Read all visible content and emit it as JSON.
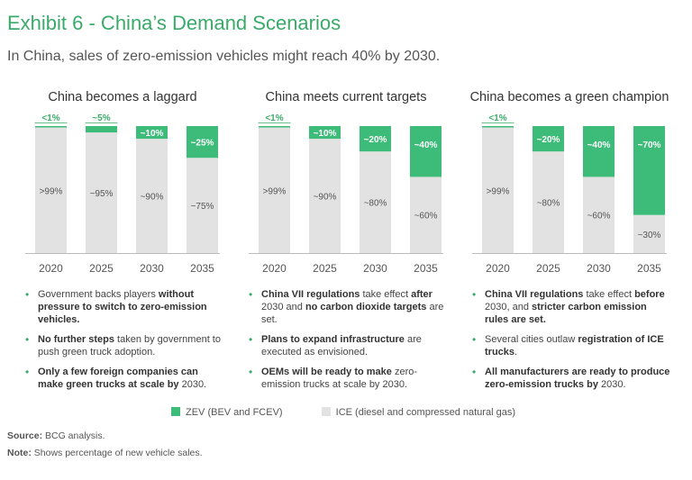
{
  "title": "Exhibit 6 - China’s Demand Scenarios",
  "subtitle": "In China, sales of zero-emission vehicles might reach 40% by 2030.",
  "colors": {
    "zev": "#3dbb78",
    "ice": "#e2e2e2",
    "accent": "#3aaa6a"
  },
  "chart_data": [
    {
      "type": "bar",
      "stacked": true,
      "title": "China becomes a laggard",
      "categories": [
        "2020",
        "2025",
        "2030",
        "2035"
      ],
      "series": [
        {
          "name": "ZEV (BEV and FCEV)",
          "values": [
            1,
            5,
            10,
            25
          ],
          "labels": [
            "<1%",
            "~5%",
            "~10%",
            "~25%"
          ]
        },
        {
          "name": "ICE (diesel and compressed natural gas)",
          "values": [
            99,
            95,
            90,
            75
          ],
          "labels": [
            ">99%",
            "~95%",
            "~90%",
            "~75%"
          ]
        }
      ],
      "ylim": [
        0,
        100
      ]
    },
    {
      "type": "bar",
      "stacked": true,
      "title": "China meets current targets",
      "categories": [
        "2020",
        "2025",
        "2030",
        "2035"
      ],
      "series": [
        {
          "name": "ZEV (BEV and FCEV)",
          "values": [
            1,
            10,
            20,
            40
          ],
          "labels": [
            "<1%",
            "~10%",
            "~20%",
            "~40%"
          ]
        },
        {
          "name": "ICE (diesel and compressed natural gas)",
          "values": [
            99,
            90,
            80,
            60
          ],
          "labels": [
            ">99%",
            "~90%",
            "~80%",
            "~60%"
          ]
        }
      ],
      "ylim": [
        0,
        100
      ]
    },
    {
      "type": "bar",
      "stacked": true,
      "title": "China becomes a green champion",
      "categories": [
        "2020",
        "2025",
        "2030",
        "2035"
      ],
      "series": [
        {
          "name": "ZEV (BEV and FCEV)",
          "values": [
            1,
            20,
            40,
            70
          ],
          "labels": [
            "<1%",
            "~20%",
            "~40%",
            "~70%"
          ]
        },
        {
          "name": "ICE (diesel and compressed natural gas)",
          "values": [
            99,
            80,
            60,
            30
          ],
          "labels": [
            ">99%",
            "~80%",
            "~60%",
            "~30%"
          ]
        }
      ],
      "ylim": [
        0,
        100
      ]
    }
  ],
  "bullets": [
    [
      [
        [
          "Government backs players ",
          false
        ],
        [
          "without pressure to switch to zero-emission vehicles.",
          true
        ]
      ],
      [
        [
          "No further steps",
          true
        ],
        [
          " taken by government to push green truck adoption.",
          false
        ]
      ],
      [
        [
          "Only a few foreign companies can make green trucks at scale by",
          true
        ],
        [
          " 2030.",
          false
        ]
      ]
    ],
    [
      [
        [
          "China VII regulations",
          true
        ],
        [
          " take effect ",
          false
        ],
        [
          "after",
          true
        ],
        [
          " 2030 and ",
          false
        ],
        [
          "no carbon dioxide targets",
          true
        ],
        [
          " are set.",
          false
        ]
      ],
      [
        [
          "Plans to expand infrastructure",
          true
        ],
        [
          " are executed as envisioned.",
          false
        ]
      ],
      [
        [
          "OEMs will be ready to make",
          true
        ],
        [
          " zero-emission trucks at scale by 2030.",
          false
        ]
      ]
    ],
    [
      [
        [
          "China VII regulations",
          true
        ],
        [
          " take effect ",
          false
        ],
        [
          "before",
          true
        ],
        [
          " 2030, and ",
          false
        ],
        [
          "stricter carbon emission rules are set.",
          true
        ]
      ],
      [
        [
          "Several cities outlaw ",
          false
        ],
        [
          "registration of ICE trucks",
          true
        ],
        [
          ".",
          false
        ]
      ],
      [
        [
          "All manufacturers are ready to produce zero-emission trucks by",
          true
        ],
        [
          " 2030.",
          false
        ]
      ]
    ]
  ],
  "legend": {
    "zev": "ZEV (BEV and FCEV)",
    "ice": "ICE (diesel and compressed natural gas)"
  },
  "source": {
    "label": "Source:",
    "text": " BCG analysis."
  },
  "note": {
    "label": "Note:",
    "text": " Shows percentage of new vehicle sales."
  }
}
